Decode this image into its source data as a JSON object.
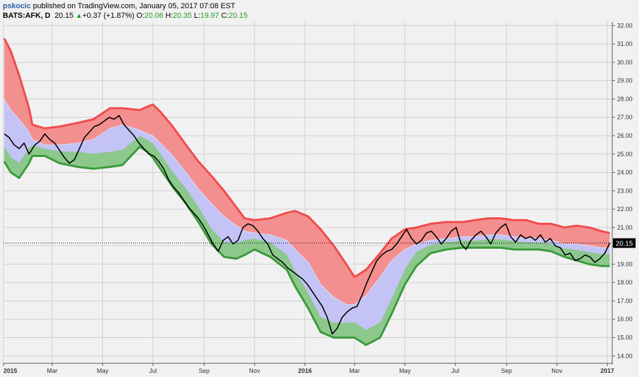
{
  "header": {
    "user": "pskocic",
    "published": "published on TradingView.com, January 05, 2017 07:08 EST",
    "symbol": "BATS:AFK, D",
    "price": "20.15",
    "change": "+0.37 (+1.87%)",
    "o_label": "O:",
    "o_value": "20.06",
    "h_label": "H:",
    "h_value": "20.35",
    "l_label": "L:",
    "l_value": "19.97",
    "c_label": "C:",
    "c_value": "20.15"
  },
  "colors": {
    "background": "#f1f1f1",
    "grid": "#cfcfcf",
    "price_line": "#000000",
    "upper_band": "#f14b4b",
    "upper_fill": "#f38f8f",
    "middle_fill": "#c3c3f5",
    "lower_band": "#3a9a3a",
    "lower_fill": "#8cc88c",
    "last_price_badge": "#000000"
  },
  "chart_data": {
    "type": "area",
    "title": "",
    "xlabel": "",
    "ylabel": "",
    "ylim": [
      13.6,
      32.2
    ],
    "yticks": [
      "32.00",
      "31.00",
      "30.00",
      "29.00",
      "28.00",
      "27.00",
      "26.00",
      "25.00",
      "24.00",
      "23.00",
      "22.00",
      "21.00",
      "20.00",
      "19.00",
      "18.00",
      "17.00",
      "16.00",
      "15.00",
      "14.00"
    ],
    "x_labels": [
      "2015",
      "Mar",
      "May",
      "Jul",
      "Sep",
      "Nov",
      "2016",
      "Mar",
      "May",
      "Jul",
      "Sep",
      "Nov",
      "2017"
    ],
    "last_price_label": "20.15",
    "last_price": 20.15,
    "grid": true,
    "series": [
      {
        "key": "upper",
        "x": [
          "2015-01-02",
          "2015-01-10",
          "2015-01-20",
          "2015-02-01",
          "2015-02-05",
          "2015-02-20",
          "2015-03-10",
          "2015-04-01",
          "2015-04-20",
          "2015-05-10",
          "2015-05-25",
          "2015-06-15",
          "2015-06-25",
          "2015-07-01",
          "2015-07-10",
          "2015-07-25",
          "2015-08-10",
          "2015-08-25",
          "2015-09-10",
          "2015-09-25",
          "2015-10-10",
          "2015-10-20",
          "2015-11-01",
          "2015-11-20",
          "2015-12-10",
          "2015-12-20",
          "2016-01-05",
          "2016-01-20",
          "2016-02-05",
          "2016-02-20",
          "2016-03-01",
          "2016-03-15",
          "2016-04-01",
          "2016-04-15",
          "2016-05-01",
          "2016-05-15",
          "2016-06-01",
          "2016-06-20",
          "2016-07-10",
          "2016-07-25",
          "2016-08-10",
          "2016-08-25",
          "2016-09-10",
          "2016-09-25",
          "2016-10-10",
          "2016-10-25",
          "2016-11-10",
          "2016-11-25",
          "2016-12-10",
          "2016-12-25",
          "2017-01-04"
        ],
        "values": [
          31.3,
          30.6,
          29.3,
          27.5,
          26.6,
          26.4,
          26.5,
          26.7,
          26.9,
          27.5,
          27.5,
          27.4,
          27.6,
          27.7,
          27.3,
          26.5,
          25.5,
          24.6,
          23.8,
          23.0,
          22.1,
          21.5,
          21.4,
          21.5,
          21.8,
          21.9,
          21.6,
          20.9,
          20.0,
          19.0,
          18.3,
          18.7,
          19.6,
          20.4,
          20.9,
          21.0,
          21.2,
          21.3,
          21.3,
          21.4,
          21.5,
          21.5,
          21.4,
          21.4,
          21.2,
          21.2,
          21.0,
          21.1,
          21.0,
          20.8,
          20.7
        ]
      },
      {
        "key": "middle",
        "x": [
          "2015-01-02",
          "2015-01-10",
          "2015-01-20",
          "2015-02-01",
          "2015-02-05",
          "2015-02-20",
          "2015-03-10",
          "2015-04-01",
          "2015-04-20",
          "2015-05-10",
          "2015-05-25",
          "2015-06-15",
          "2015-06-25",
          "2015-07-01",
          "2015-07-10",
          "2015-07-25",
          "2015-08-10",
          "2015-08-25",
          "2015-09-10",
          "2015-09-25",
          "2015-10-10",
          "2015-10-20",
          "2015-11-01",
          "2015-11-20",
          "2015-12-10",
          "2015-12-20",
          "2016-01-05",
          "2016-01-20",
          "2016-02-05",
          "2016-02-20",
          "2016-03-01",
          "2016-03-15",
          "2016-04-01",
          "2016-04-15",
          "2016-05-01",
          "2016-05-15",
          "2016-06-01",
          "2016-06-20",
          "2016-07-10",
          "2016-07-25",
          "2016-08-10",
          "2016-08-25",
          "2016-09-10",
          "2016-09-25",
          "2016-10-10",
          "2016-10-25",
          "2016-11-10",
          "2016-11-25",
          "2016-12-10",
          "2016-12-25",
          "2017-01-04"
        ],
        "values": [
          28.0,
          27.4,
          26.9,
          26.2,
          25.8,
          25.5,
          25.5,
          25.6,
          25.8,
          26.4,
          26.6,
          26.3,
          26.1,
          26.0,
          25.6,
          24.9,
          24.0,
          23.1,
          22.3,
          21.6,
          21.1,
          20.8,
          20.7,
          20.6,
          20.3,
          19.8,
          19.1,
          17.9,
          17.2,
          16.8,
          16.8,
          17.3,
          18.3,
          19.2,
          19.8,
          20.1,
          20.3,
          20.4,
          20.5,
          20.5,
          20.6,
          20.6,
          20.5,
          20.4,
          20.4,
          20.3,
          20.1,
          20.1,
          20.0,
          19.9,
          19.9
        ]
      },
      {
        "key": "lower",
        "x": [
          "2015-01-02",
          "2015-01-10",
          "2015-01-20",
          "2015-02-01",
          "2015-02-05",
          "2015-02-20",
          "2015-03-10",
          "2015-04-01",
          "2015-04-20",
          "2015-05-10",
          "2015-05-25",
          "2015-06-15",
          "2015-06-25",
          "2015-07-01",
          "2015-07-10",
          "2015-07-25",
          "2015-08-10",
          "2015-08-25",
          "2015-09-10",
          "2015-09-25",
          "2015-10-10",
          "2015-10-20",
          "2015-11-01",
          "2015-11-20",
          "2015-12-10",
          "2015-12-20",
          "2016-01-05",
          "2016-01-20",
          "2016-02-05",
          "2016-02-20",
          "2016-03-01",
          "2016-03-15",
          "2016-04-01",
          "2016-04-15",
          "2016-05-01",
          "2016-05-15",
          "2016-06-01",
          "2016-06-20",
          "2016-07-10",
          "2016-07-25",
          "2016-08-10",
          "2016-08-25",
          "2016-09-10",
          "2016-09-25",
          "2016-10-10",
          "2016-10-25",
          "2016-11-10",
          "2016-11-25",
          "2016-12-10",
          "2016-12-25",
          "2017-01-04"
        ],
        "values": [
          24.6,
          24.0,
          23.7,
          24.5,
          24.9,
          24.9,
          24.5,
          24.3,
          24.2,
          24.3,
          24.4,
          25.4,
          25.1,
          24.8,
          24.2,
          23.2,
          22.3,
          21.3,
          20.1,
          19.4,
          19.3,
          19.5,
          19.8,
          19.4,
          18.7,
          17.8,
          16.6,
          15.3,
          15.0,
          15.0,
          15.0,
          14.6,
          15.0,
          16.3,
          17.9,
          18.9,
          19.6,
          19.8,
          19.9,
          19.9,
          19.9,
          19.9,
          19.8,
          19.8,
          19.8,
          19.7,
          19.4,
          19.2,
          19.0,
          18.9,
          18.9
        ]
      },
      {
        "key": "price",
        "x": [
          "2015-01-02",
          "2015-01-08",
          "2015-01-14",
          "2015-01-20",
          "2015-01-26",
          "2015-02-01",
          "2015-02-08",
          "2015-02-14",
          "2015-02-20",
          "2015-02-26",
          "2015-03-04",
          "2015-03-10",
          "2015-03-16",
          "2015-03-22",
          "2015-03-28",
          "2015-04-03",
          "2015-04-09",
          "2015-04-15",
          "2015-04-21",
          "2015-04-27",
          "2015-05-03",
          "2015-05-09",
          "2015-05-15",
          "2015-05-21",
          "2015-05-27",
          "2015-06-02",
          "2015-06-08",
          "2015-06-14",
          "2015-06-20",
          "2015-06-26",
          "2015-07-02",
          "2015-07-08",
          "2015-07-14",
          "2015-07-20",
          "2015-07-26",
          "2015-08-01",
          "2015-08-07",
          "2015-08-13",
          "2015-08-19",
          "2015-08-25",
          "2015-08-31",
          "2015-09-06",
          "2015-09-12",
          "2015-09-18",
          "2015-09-24",
          "2015-09-30",
          "2015-10-06",
          "2015-10-12",
          "2015-10-18",
          "2015-10-24",
          "2015-10-30",
          "2015-11-05",
          "2015-11-11",
          "2015-11-17",
          "2015-11-23",
          "2015-11-29",
          "2015-12-05",
          "2015-12-11",
          "2015-12-17",
          "2015-12-23",
          "2015-12-29",
          "2016-01-04",
          "2016-01-10",
          "2016-01-16",
          "2016-01-22",
          "2016-01-28",
          "2016-02-03",
          "2016-02-09",
          "2016-02-15",
          "2016-02-21",
          "2016-02-27",
          "2016-03-04",
          "2016-03-10",
          "2016-03-16",
          "2016-03-22",
          "2016-03-28",
          "2016-04-03",
          "2016-04-09",
          "2016-04-15",
          "2016-04-21",
          "2016-04-27",
          "2016-05-03",
          "2016-05-09",
          "2016-05-15",
          "2016-05-21",
          "2016-05-27",
          "2016-06-02",
          "2016-06-08",
          "2016-06-14",
          "2016-06-20",
          "2016-06-26",
          "2016-07-02",
          "2016-07-08",
          "2016-07-14",
          "2016-07-20",
          "2016-07-26",
          "2016-08-01",
          "2016-08-07",
          "2016-08-13",
          "2016-08-19",
          "2016-08-25",
          "2016-08-31",
          "2016-09-06",
          "2016-09-12",
          "2016-09-18",
          "2016-09-24",
          "2016-09-30",
          "2016-10-06",
          "2016-10-12",
          "2016-10-18",
          "2016-10-24",
          "2016-10-30",
          "2016-11-05",
          "2016-11-11",
          "2016-11-17",
          "2016-11-23",
          "2016-11-29",
          "2016-12-05",
          "2016-12-11",
          "2016-12-17",
          "2016-12-23",
          "2016-12-29",
          "2017-01-04"
        ],
        "values": [
          26.1,
          25.9,
          25.5,
          25.3,
          25.6,
          25.0,
          25.5,
          25.7,
          26.1,
          25.8,
          25.6,
          25.2,
          24.8,
          24.5,
          24.7,
          25.3,
          25.9,
          26.2,
          26.5,
          26.6,
          26.8,
          27.0,
          26.9,
          27.1,
          26.6,
          26.3,
          26.0,
          25.6,
          25.3,
          25.0,
          24.9,
          24.6,
          24.2,
          23.6,
          23.2,
          22.9,
          22.5,
          22.1,
          21.8,
          21.5,
          21.1,
          20.6,
          20.1,
          19.7,
          20.3,
          20.5,
          20.1,
          20.3,
          21.0,
          21.2,
          21.1,
          20.8,
          20.4,
          20.1,
          19.5,
          19.3,
          19.1,
          18.8,
          18.6,
          18.4,
          18.2,
          17.9,
          17.5,
          17.1,
          16.7,
          16.1,
          15.2,
          15.5,
          16.1,
          16.4,
          16.6,
          16.7,
          17.3,
          18.0,
          18.6,
          19.2,
          19.5,
          19.7,
          19.8,
          20.1,
          20.5,
          20.9,
          20.4,
          20.1,
          20.3,
          20.7,
          20.8,
          20.5,
          20.1,
          20.4,
          20.8,
          21.0,
          20.1,
          19.8,
          20.3,
          20.6,
          20.8,
          20.5,
          20.1,
          20.7,
          21.0,
          21.2,
          20.5,
          20.2,
          20.6,
          20.4,
          20.5,
          20.3,
          20.6,
          20.2,
          20.4,
          20.0,
          19.9,
          19.5,
          19.6,
          19.2,
          19.3,
          19.5,
          19.4,
          19.1,
          19.3,
          19.6,
          20.15
        ]
      }
    ]
  }
}
